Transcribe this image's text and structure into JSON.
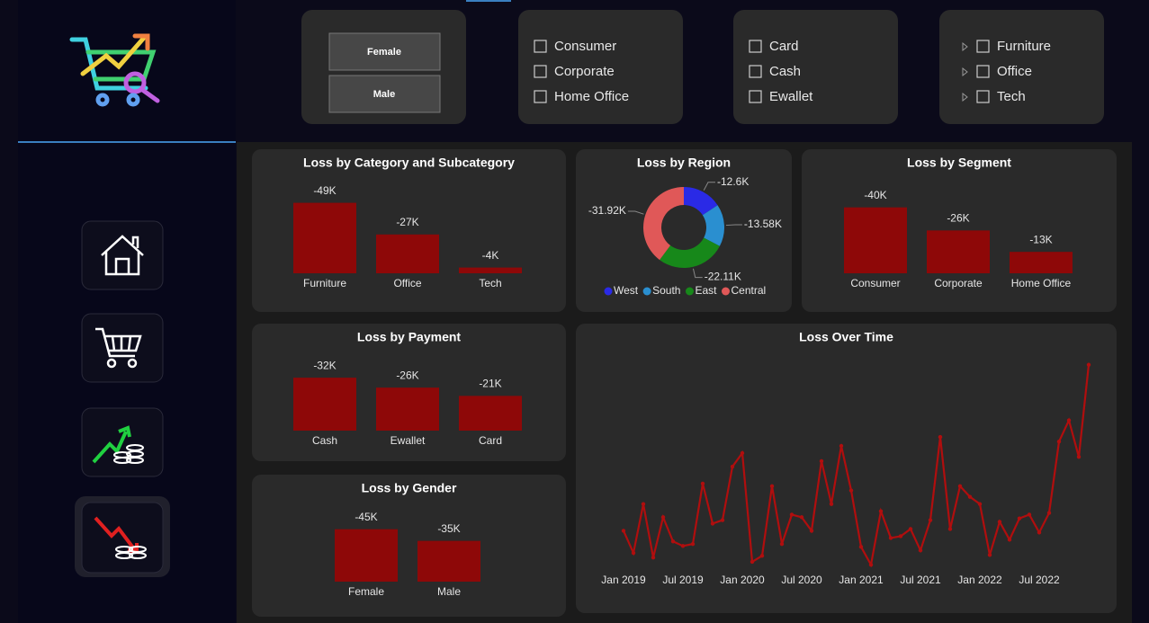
{
  "slicers": {
    "gender": [
      "Female",
      "Male"
    ],
    "segment": [
      "Consumer",
      "Corporate",
      "Home Office"
    ],
    "payment": [
      "Card",
      "Cash",
      "Ewallet"
    ],
    "category": [
      "Furniture",
      "Office",
      "Tech"
    ]
  },
  "chart_data": [
    {
      "type": "bar",
      "title": "Loss by Category and Subcategory",
      "categories": [
        "Furniture",
        "Office",
        "Tech"
      ],
      "values": [
        -49000,
        -27000,
        -4000
      ],
      "value_labels": [
        "-49K",
        "-27K",
        "-4K"
      ],
      "color": "#8e0808",
      "ylim": [
        0,
        -55000
      ]
    },
    {
      "type": "donut",
      "title": "Loss by Region",
      "categories": [
        "West",
        "South",
        "East",
        "Central"
      ],
      "values": [
        -12600,
        -13580,
        -22110,
        -31920
      ],
      "value_labels": [
        "-12.6K",
        "-13.58K",
        "-22.11K",
        "-31.92K"
      ],
      "colors": [
        "#2a2ae6",
        "#2a8fd0",
        "#17881a",
        "#e05858"
      ]
    },
    {
      "type": "bar",
      "title": "Loss by Segment",
      "categories": [
        "Consumer",
        "Corporate",
        "Home Office"
      ],
      "values": [
        -40000,
        -26000,
        -13000
      ],
      "value_labels": [
        "-40K",
        "-26K",
        "-13K"
      ],
      "color": "#8e0808",
      "ylim": [
        0,
        -48000
      ]
    },
    {
      "type": "bar",
      "title": "Loss by Payment",
      "categories": [
        "Cash",
        "Ewallet",
        "Card"
      ],
      "values": [
        -32000,
        -26000,
        -21000
      ],
      "value_labels": [
        "-32K",
        "-26K",
        "-21K"
      ],
      "color": "#8e0808",
      "ylim": [
        0,
        -37500
      ]
    },
    {
      "type": "bar",
      "title": "Loss by Gender",
      "categories": [
        "Female",
        "Male"
      ],
      "values": [
        -45000,
        -35000
      ],
      "value_labels": [
        "-45K",
        "-35K"
      ],
      "color": "#8e0808",
      "ylim": [
        0,
        -54000
      ]
    },
    {
      "type": "line",
      "title": "Loss Over Time",
      "color": "#b00e0e",
      "ylim": [
        0,
        -7500
      ],
      "x": [
        "2019-01",
        "2019-02",
        "2019-03",
        "2019-04",
        "2019-05",
        "2019-06",
        "2019-07",
        "2019-08",
        "2019-09",
        "2019-10",
        "2019-11",
        "2019-12",
        "2020-01",
        "2020-02",
        "2020-03",
        "2020-04",
        "2020-05",
        "2020-06",
        "2020-07",
        "2020-08",
        "2020-09",
        "2020-10",
        "2020-11",
        "2020-12",
        "2021-01",
        "2021-02",
        "2021-03",
        "2021-04",
        "2021-05",
        "2021-06",
        "2021-07",
        "2021-08",
        "2021-09",
        "2021-10",
        "2021-11",
        "2021-12",
        "2022-01",
        "2022-02",
        "2022-03",
        "2022-04",
        "2022-05",
        "2022-06",
        "2022-07",
        "2022-08",
        "2022-09",
        "2022-10",
        "2022-11",
        "2022-12"
      ],
      "values": [
        -1550,
        -780,
        -2480,
        -620,
        -2020,
        -1180,
        -1020,
        -1090,
        -3190,
        -1800,
        -1920,
        -3780,
        -4250,
        -470,
        -680,
        -3100,
        -1090,
        -2110,
        -2020,
        -1550,
        -3970,
        -2480,
        -4500,
        -2950,
        -990,
        -370,
        -2230,
        -1300,
        -1360,
        -1610,
        -870,
        -1920,
        -4810,
        -1610,
        -3100,
        -2730,
        -2480,
        -710,
        -1860,
        -1240,
        -1980,
        -2110,
        -1490,
        -2170,
        -4650,
        -5390,
        -4120,
        -7320
      ],
      "xticks": [
        {
          "value": "2019-01",
          "label": "Jan 2019"
        },
        {
          "value": "2019-07",
          "label": "Jul 2019"
        },
        {
          "value": "2020-01",
          "label": "Jan 2020"
        },
        {
          "value": "2020-07",
          "label": "Jul 2020"
        },
        {
          "value": "2021-01",
          "label": "Jan 2021"
        },
        {
          "value": "2021-07",
          "label": "Jul 2021"
        },
        {
          "value": "2022-01",
          "label": "Jan 2022"
        },
        {
          "value": "2022-07",
          "label": "Jul 2022"
        }
      ]
    }
  ]
}
